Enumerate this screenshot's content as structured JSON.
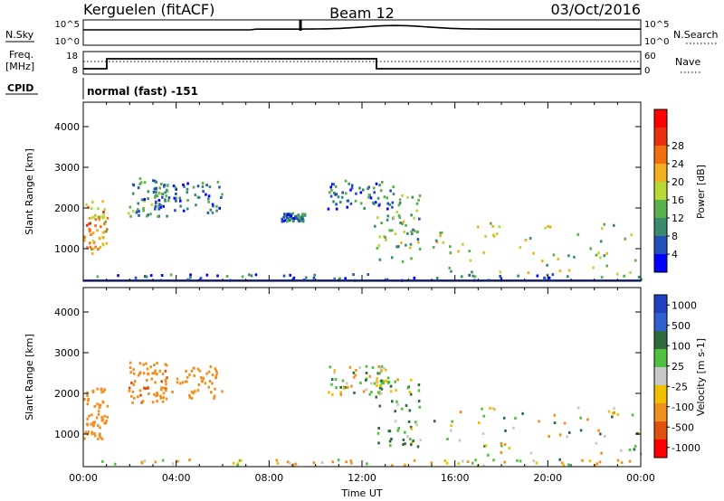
{
  "header": {
    "station": "Kerguelen (fitACF)",
    "beam": "Beam 12",
    "date": "03/Oct/2016"
  },
  "noise_panel": {
    "left_label": "N.Sky",
    "right_label": "N.Search",
    "left_ticks": [
      "10^5",
      "10^0"
    ],
    "right_ticks": [
      "10^5",
      "10^0"
    ]
  },
  "freq_panel": {
    "left_label_top": "Freq.",
    "left_label_bottom": "[MHz]",
    "right_label": "Nave",
    "left_ticks": [
      "18",
      "8"
    ],
    "right_ticks": [
      "60",
      "0"
    ]
  },
  "cpid": {
    "label": "CPID",
    "mode": "normal (fast) -151"
  },
  "colors": {
    "power_scale": [
      "#0000ff",
      "#2050b8",
      "#3a8a6e",
      "#5ab04a",
      "#b8d838",
      "#f0b020",
      "#f07010",
      "#e83010",
      "#ff0000"
    ],
    "velocity_scale": [
      "#2040c0",
      "#3060d0",
      "#306a40",
      "#50c040",
      "#c8c8c8",
      "#f0c000",
      "#f09020",
      "#e05010",
      "#ff0000"
    ]
  },
  "chart_data": [
    {
      "type": "heatmap",
      "name": "power",
      "ylabel": "Slant Range [km]",
      "yticks": [
        1000,
        2000,
        3000,
        4000
      ],
      "ylim": [
        200,
        4600
      ],
      "xlim": [
        0,
        24
      ],
      "colorbar": {
        "label": "Power [dB]",
        "ticks": [
          "4",
          "8",
          "12",
          "16",
          "20",
          "24",
          "28"
        ],
        "range": [
          0,
          32
        ]
      },
      "patches": [
        {
          "t": [
            0.0,
            1.0
          ],
          "r": [
            900,
            2200
          ],
          "v": 22
        },
        {
          "t": [
            1.9,
            3.6
          ],
          "r": [
            1800,
            2800
          ],
          "v": 10
        },
        {
          "t": [
            3.0,
            6.0
          ],
          "r": [
            1900,
            2700
          ],
          "v": 9
        },
        {
          "t": [
            8.5,
            9.5
          ],
          "r": [
            1700,
            1900
          ],
          "v": 8
        },
        {
          "t": [
            10.5,
            13.5
          ],
          "r": [
            2000,
            2700
          ],
          "v": 9
        },
        {
          "t": [
            12.5,
            14.5
          ],
          "r": [
            700,
            2400
          ],
          "v": 14
        },
        {
          "t": [
            15.0,
            24.0
          ],
          "r": [
            400,
            1700
          ],
          "v": 17
        },
        {
          "t": [
            0.0,
            24.0
          ],
          "r": [
            250,
            400
          ],
          "v": 8
        }
      ]
    },
    {
      "type": "heatmap",
      "name": "velocity",
      "ylabel": "Slant Range [km]",
      "xlabel": "Time UT",
      "yticks": [
        1000,
        2000,
        3000,
        4000
      ],
      "xticks": [
        "00:00",
        "04:00",
        "08:00",
        "12:00",
        "16:00",
        "20:00",
        "00:00"
      ],
      "ylim": [
        200,
        4600
      ],
      "xlim": [
        0,
        24
      ],
      "colorbar": {
        "label": "Velocity [m s-1]",
        "ticks": [
          "1000",
          "500",
          "100",
          "25",
          "-25",
          "-100",
          "-500",
          "-1000"
        ]
      },
      "patches": [
        {
          "t": [
            0.0,
            1.0
          ],
          "r": [
            900,
            2200
          ],
          "v": -300
        },
        {
          "t": [
            1.9,
            3.6
          ],
          "r": [
            1800,
            2800
          ],
          "v": -400
        },
        {
          "t": [
            3.0,
            6.0
          ],
          "r": [
            1900,
            2700
          ],
          "v": -350
        },
        {
          "t": [
            10.5,
            13.5
          ],
          "r": [
            2000,
            2700
          ],
          "v": 0
        },
        {
          "t": [
            12.5,
            14.5
          ],
          "r": [
            700,
            2400
          ],
          "v": 80
        },
        {
          "t": [
            15.0,
            24.0
          ],
          "r": [
            400,
            1700
          ],
          "v": 0
        },
        {
          "t": [
            0.0,
            24.0
          ],
          "r": [
            250,
            400
          ],
          "v": -60
        }
      ]
    }
  ]
}
